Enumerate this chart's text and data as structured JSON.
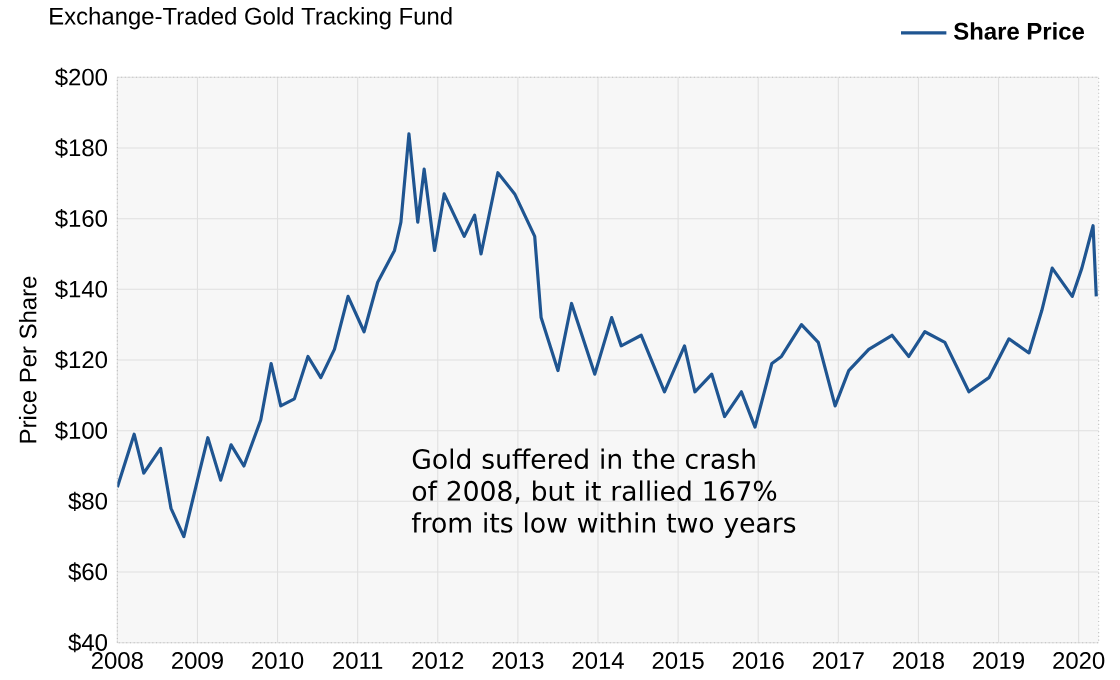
{
  "chart_data": {
    "type": "line",
    "title": "Exchange-Traded Gold Tracking Fund",
    "ylabel": "Price Per Share",
    "annotations": [
      "Gold suffered in the crash of 2008, but it rallied 167% from its low within two years"
    ],
    "x": [
      2008.0,
      2008.21,
      2008.33,
      2008.54,
      2008.67,
      2008.83,
      2009.0,
      2009.13,
      2009.29,
      2009.42,
      2009.58,
      2009.79,
      2009.92,
      2010.04,
      2010.21,
      2010.38,
      2010.54,
      2010.71,
      2010.88,
      2011.08,
      2011.25,
      2011.46,
      2011.54,
      2011.64,
      2011.75,
      2011.83,
      2011.96,
      2012.08,
      2012.33,
      2012.46,
      2012.54,
      2012.75,
      2012.96,
      2013.21,
      2013.29,
      2013.5,
      2013.67,
      2013.96,
      2014.17,
      2014.29,
      2014.54,
      2014.83,
      2015.08,
      2015.21,
      2015.42,
      2015.58,
      2015.79,
      2015.96,
      2016.17,
      2016.29,
      2016.54,
      2016.75,
      2016.96,
      2017.13,
      2017.38,
      2017.67,
      2017.88,
      2018.08,
      2018.33,
      2018.63,
      2018.88,
      2019.13,
      2019.38,
      2019.54,
      2019.67,
      2019.92,
      2020.04,
      2020.18,
      2020.22
    ],
    "series": [
      {
        "name": "Share Price",
        "color": "#1f5591",
        "values": [
          84,
          99,
          88,
          95,
          78,
          70,
          86,
          98,
          86,
          96,
          90,
          103,
          119,
          107,
          109,
          121,
          115,
          123,
          138,
          128,
          142,
          151,
          159,
          184,
          159,
          174,
          151,
          167,
          155,
          161,
          150,
          173,
          167,
          155,
          132,
          117,
          136,
          116,
          132,
          124,
          127,
          111,
          124,
          111,
          116,
          104,
          111,
          101,
          119,
          121,
          130,
          125,
          107,
          117,
          123,
          127,
          121,
          128,
          125,
          111,
          115,
          126,
          122,
          134,
          146,
          138,
          146,
          158,
          138
        ]
      }
    ],
    "xlim": [
      2008,
      2020.25
    ],
    "ylim": [
      40,
      200
    ],
    "xticks": [
      2008,
      2009,
      2010,
      2011,
      2012,
      2013,
      2014,
      2015,
      2016,
      2017,
      2018,
      2019,
      2020
    ],
    "yticks": [
      {
        "value": 40,
        "label": "$40"
      },
      {
        "value": 60,
        "label": "$60"
      },
      {
        "value": 80,
        "label": "$80"
      },
      {
        "value": 100,
        "label": "$100"
      },
      {
        "value": 120,
        "label": "$120"
      },
      {
        "value": 140,
        "label": "$140"
      },
      {
        "value": 160,
        "label": "$160"
      },
      {
        "value": 180,
        "label": "$180"
      },
      {
        "value": 200,
        "label": "$200"
      }
    ],
    "grid": true,
    "legend": "top right",
    "line_style": "solid"
  }
}
